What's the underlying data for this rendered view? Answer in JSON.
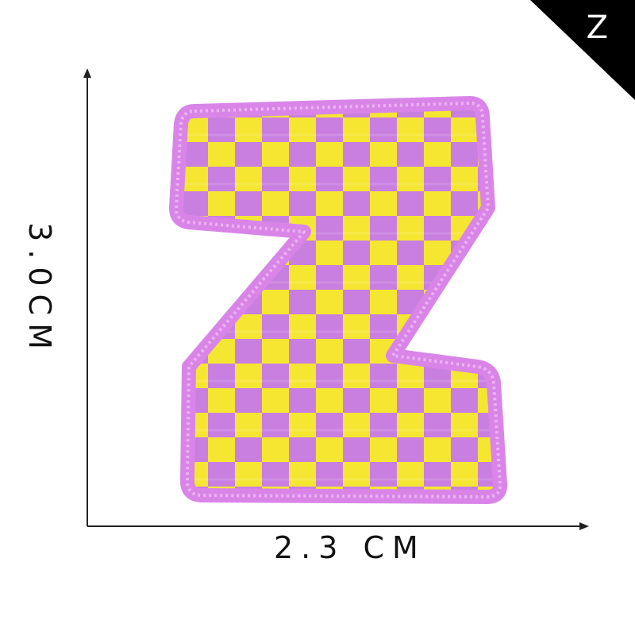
{
  "product": {
    "corner_badge_letter": "Z",
    "height_label": "3.0CM",
    "width_label": "2.3 CM"
  },
  "colors": {
    "border": "#d985e8",
    "checker_purple": "#c97fe0",
    "checker_yellow": "#f5e632",
    "badge": "#000000",
    "axis": "#222222"
  },
  "icons": {
    "patch": "letter-z-checker-patch",
    "badge": "corner-triangle"
  }
}
